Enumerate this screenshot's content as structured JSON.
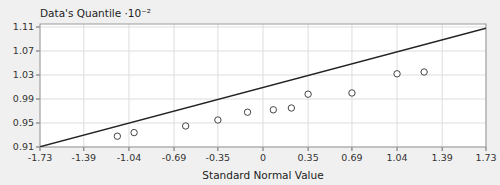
{
  "chart_data": {
    "type": "scatter",
    "xlabel": "Standard Normal Value",
    "ylabel": "Data's Quantile ·10⁻²",
    "xlim": [
      -1.73,
      1.73
    ],
    "ylim": [
      0.91,
      1.115
    ],
    "xticks": [
      -1.73,
      -1.39,
      -1.04,
      -0.69,
      -0.35,
      0,
      0.35,
      0.69,
      1.04,
      1.39,
      1.73
    ],
    "yticks": [
      0.91,
      0.95,
      0.99,
      1.03,
      1.07,
      1.11
    ],
    "grid": true,
    "series": [
      {
        "type": "line",
        "color": "#222222",
        "line_style": "solid",
        "x": [
          -1.73,
          1.73
        ],
        "values": [
          0.9105,
          1.108
        ]
      },
      {
        "type": "scatter",
        "color": "white",
        "marker": "circle",
        "x": [
          -1.13,
          -1.0,
          -0.6,
          -0.35,
          -0.12,
          0.08,
          0.22,
          0.35,
          0.69,
          1.04,
          1.25
        ],
        "values": [
          0.928,
          0.934,
          0.945,
          0.955,
          0.968,
          0.972,
          0.975,
          0.998,
          1.0,
          1.032,
          1.035
        ]
      }
    ]
  }
}
